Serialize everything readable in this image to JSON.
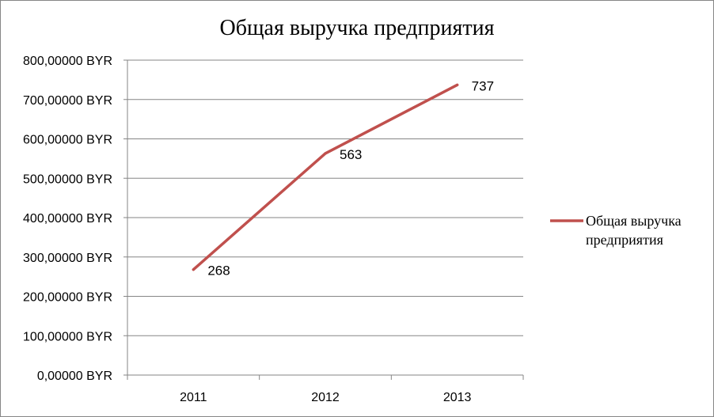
{
  "chart_data": {
    "type": "line",
    "title": "Общая выручка предприятия",
    "categories": [
      "2011",
      "2012",
      "2013"
    ],
    "series": [
      {
        "name": "Общая выручка предприятия",
        "values": [
          268,
          563,
          737
        ],
        "data_labels": [
          "268",
          "563",
          "737"
        ],
        "color": "#C0504D"
      }
    ],
    "y_ticks": [
      "0,00000 BYR",
      "100,00000 BYR",
      "200,00000 BYR",
      "300,00000 BYR",
      "400,00000 BYR",
      "500,00000 BYR",
      "600,00000 BYR",
      "700,00000 BYR",
      "800,00000 BYR"
    ],
    "ylim": [
      0,
      800
    ],
    "grid": true,
    "legend": "right",
    "legend_lines": [
      "Общая выручка",
      "предприятия"
    ],
    "gridline_color": "#868686",
    "axis_color": "#868686"
  }
}
